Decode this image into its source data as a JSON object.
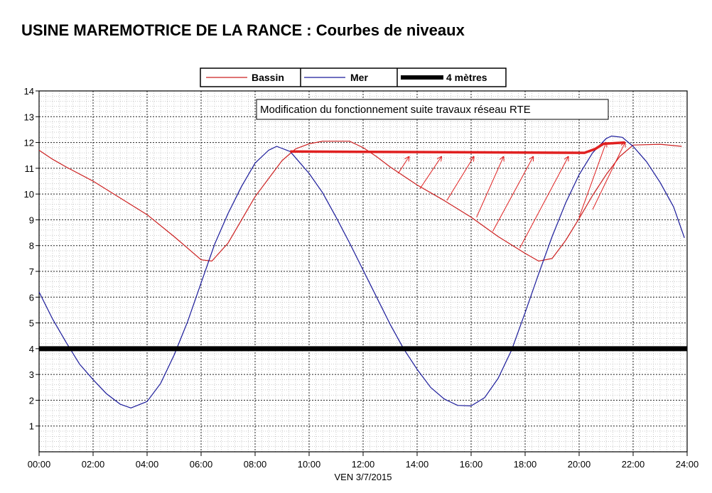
{
  "chart_data": {
    "type": "line",
    "title": "USINE MAREMOTRICE DE LA RANCE : Courbes de niveaux",
    "xlabel": "VEN 3/7/2015",
    "ylabel": "",
    "x_unit": "hours",
    "xlim": [
      0,
      24
    ],
    "ylim": [
      0,
      14
    ],
    "x_tick_labels": [
      "00:00",
      "02:00",
      "04:00",
      "06:00",
      "08:00",
      "10:00",
      "12:00",
      "14:00",
      "16:00",
      "18:00",
      "20:00",
      "22:00",
      "24:00"
    ],
    "y_tick_labels": [
      "1",
      "2",
      "3",
      "4",
      "5",
      "6",
      "7",
      "8",
      "9",
      "10",
      "11",
      "12",
      "13",
      "14"
    ],
    "grid": true,
    "legend_position": "top-center",
    "legend": [
      {
        "label": "Bassin",
        "color": "#cc2020"
      },
      {
        "label": "Mer",
        "color": "#1a1a9a"
      },
      {
        "label": "4 mètres",
        "color": "#000000"
      }
    ],
    "annotation": "Modification du fonctionnement suite travaux réseau RTE",
    "series": [
      {
        "name": "Bassin",
        "color": "#cc2020",
        "points": [
          [
            0,
            11.7
          ],
          [
            0.5,
            11.35
          ],
          [
            1,
            11.05
          ],
          [
            2,
            10.5
          ],
          [
            3,
            9.85
          ],
          [
            4,
            9.2
          ],
          [
            5,
            8.35
          ],
          [
            5.5,
            7.9
          ],
          [
            6,
            7.45
          ],
          [
            6.4,
            7.4
          ],
          [
            7,
            8.1
          ],
          [
            8,
            9.9
          ],
          [
            8.5,
            10.6
          ],
          [
            9,
            11.3
          ],
          [
            9.5,
            11.75
          ],
          [
            10,
            11.95
          ],
          [
            10.5,
            12.05
          ],
          [
            11,
            12.05
          ],
          [
            11.5,
            12.05
          ],
          [
            12,
            11.8
          ],
          [
            12.5,
            11.45
          ],
          [
            13,
            11.05
          ],
          [
            14,
            10.35
          ],
          [
            15,
            9.75
          ],
          [
            16,
            9.1
          ],
          [
            17,
            8.35
          ],
          [
            18,
            7.7
          ],
          [
            18.5,
            7.4
          ],
          [
            19,
            7.5
          ],
          [
            19.5,
            8.2
          ],
          [
            20,
            9.05
          ],
          [
            20.5,
            9.95
          ],
          [
            21,
            10.75
          ],
          [
            21.5,
            11.45
          ],
          [
            22,
            11.9
          ],
          [
            23,
            11.93
          ],
          [
            23.8,
            11.85
          ]
        ]
      },
      {
        "name": "Mer",
        "color": "#1a1a9a",
        "points": [
          [
            0,
            6.2
          ],
          [
            0.5,
            5.15
          ],
          [
            1,
            4.25
          ],
          [
            1.5,
            3.4
          ],
          [
            2,
            2.8
          ],
          [
            2.5,
            2.25
          ],
          [
            3,
            1.85
          ],
          [
            3.4,
            1.7
          ],
          [
            4,
            1.95
          ],
          [
            4.5,
            2.65
          ],
          [
            5,
            3.75
          ],
          [
            5.5,
            5.05
          ],
          [
            6,
            6.55
          ],
          [
            6.5,
            8.05
          ],
          [
            7,
            9.25
          ],
          [
            7.5,
            10.3
          ],
          [
            8,
            11.2
          ],
          [
            8.5,
            11.7
          ],
          [
            8.8,
            11.85
          ],
          [
            9.3,
            11.65
          ],
          [
            10,
            10.8
          ],
          [
            10.5,
            10.05
          ],
          [
            11,
            9.1
          ],
          [
            11.5,
            8.1
          ],
          [
            12,
            7.05
          ],
          [
            12.5,
            6.0
          ],
          [
            13,
            4.95
          ],
          [
            13.5,
            4.0
          ],
          [
            14,
            3.2
          ],
          [
            14.5,
            2.5
          ],
          [
            15,
            2.05
          ],
          [
            15.5,
            1.8
          ],
          [
            16,
            1.78
          ],
          [
            16.5,
            2.1
          ],
          [
            17,
            2.85
          ],
          [
            17.5,
            3.95
          ],
          [
            18,
            5.4
          ],
          [
            18.5,
            6.9
          ],
          [
            19,
            8.35
          ],
          [
            19.5,
            9.65
          ],
          [
            20,
            10.75
          ],
          [
            20.5,
            11.6
          ],
          [
            21,
            12.15
          ],
          [
            21.2,
            12.25
          ],
          [
            21.6,
            12.2
          ],
          [
            22,
            11.85
          ],
          [
            22.5,
            11.25
          ],
          [
            23,
            10.45
          ],
          [
            23.5,
            9.5
          ],
          [
            23.9,
            8.3
          ]
        ]
      },
      {
        "name": "4 mètres",
        "color": "#000000",
        "points": [
          [
            0,
            4
          ],
          [
            24,
            4
          ]
        ]
      }
    ],
    "hand_drawn": {
      "color": "#e02020",
      "line": [
        [
          9.3,
          11.65
        ],
        [
          20.2,
          11.6
        ],
        [
          20.6,
          11.75
        ],
        [
          20.9,
          11.95
        ],
        [
          21.7,
          12.0
        ]
      ],
      "arrows": [
        [
          [
            13.3,
            10.8
          ],
          [
            13.7,
            11.45
          ]
        ],
        [
          [
            14.1,
            10.2
          ],
          [
            14.9,
            11.45
          ]
        ],
        [
          [
            15.1,
            9.75
          ],
          [
            16.1,
            11.45
          ]
        ],
        [
          [
            16.2,
            9.1
          ],
          [
            17.2,
            11.45
          ]
        ],
        [
          [
            16.8,
            8.55
          ],
          [
            18.3,
            11.45
          ]
        ],
        [
          [
            17.8,
            7.9
          ],
          [
            19.6,
            11.45
          ]
        ],
        [
          [
            20.0,
            9.1
          ],
          [
            21.0,
            12.0
          ]
        ],
        [
          [
            20.5,
            9.4
          ],
          [
            21.7,
            12.0
          ]
        ]
      ]
    }
  }
}
